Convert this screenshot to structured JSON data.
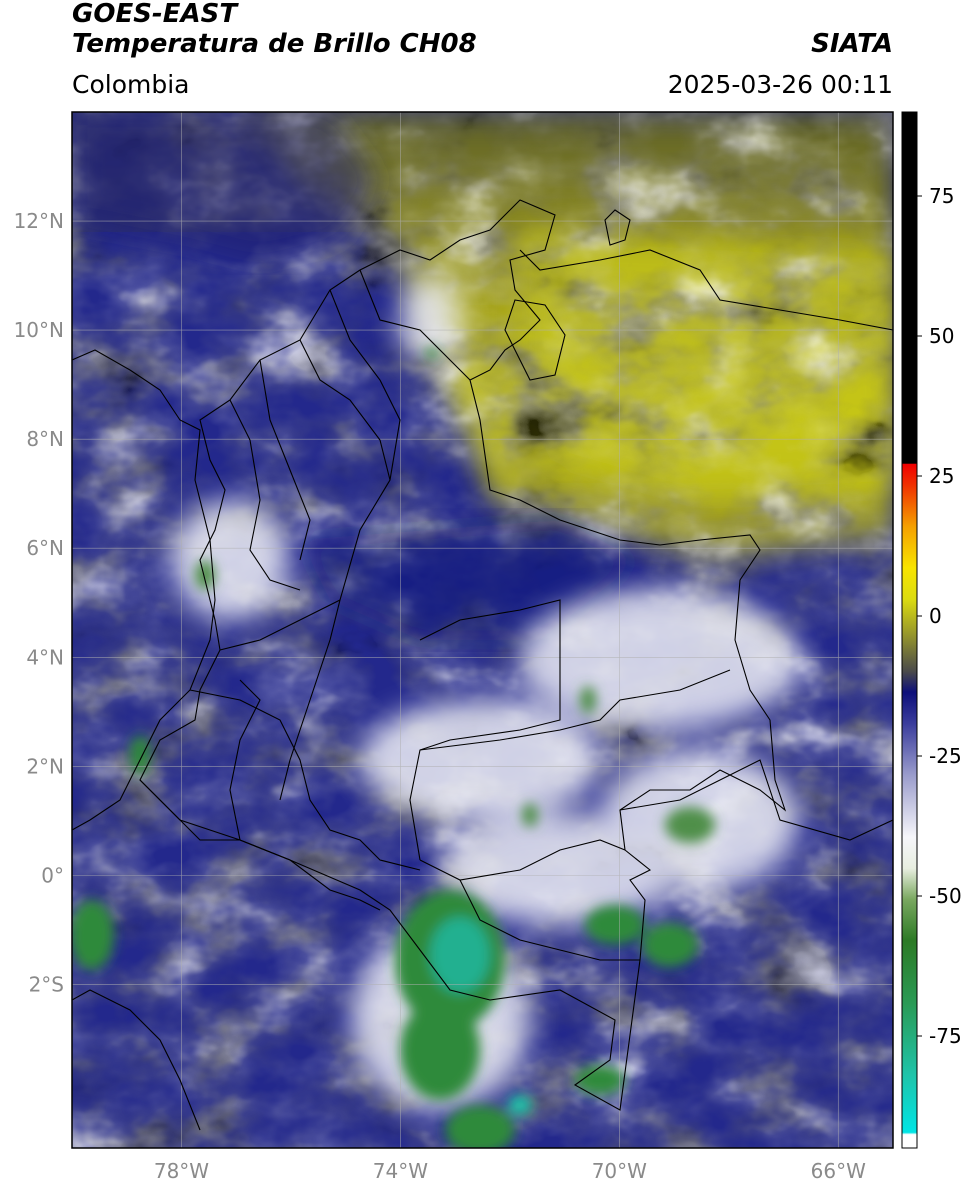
{
  "header": {
    "satellite": "GOES-EAST",
    "product": "Temperatura de Brillo CH08",
    "brand": "SIATA",
    "region": "Colombia",
    "timestamp": "2025-03-26 00:11"
  },
  "map": {
    "lon_range": [
      -80,
      -65
    ],
    "lat_range": [
      -5,
      14
    ],
    "lat_ticks": [
      {
        "value": 12,
        "label": "12°N"
      },
      {
        "value": 10,
        "label": "10°N"
      },
      {
        "value": 8,
        "label": "8°N"
      },
      {
        "value": 6,
        "label": "6°N"
      },
      {
        "value": 4,
        "label": "4°N"
      },
      {
        "value": 2,
        "label": "2°N"
      },
      {
        "value": 0,
        "label": "0°"
      },
      {
        "value": -2,
        "label": "2°S"
      }
    ],
    "lon_ticks": [
      {
        "value": -78,
        "label": "78°W"
      },
      {
        "value": -74,
        "label": "74°W"
      },
      {
        "value": -70,
        "label": "70°W"
      },
      {
        "value": -66,
        "label": "66°W"
      }
    ],
    "colors": {
      "cold_blue": "#1a1f8a",
      "white": "#f4f4f8",
      "green": "#2f8a3a",
      "olive": "#9a9a22",
      "yellow": "#c9c816",
      "border": "#000000"
    }
  },
  "colorbar": {
    "range": [
      -95,
      90
    ],
    "ticks": [
      {
        "value": 75,
        "label": "75"
      },
      {
        "value": 50,
        "label": "50"
      },
      {
        "value": 25,
        "label": "25"
      },
      {
        "value": 0,
        "label": "0"
      },
      {
        "value": -25,
        "label": "-25"
      },
      {
        "value": -50,
        "label": "-50"
      },
      {
        "value": -75,
        "label": "-75"
      }
    ]
  }
}
